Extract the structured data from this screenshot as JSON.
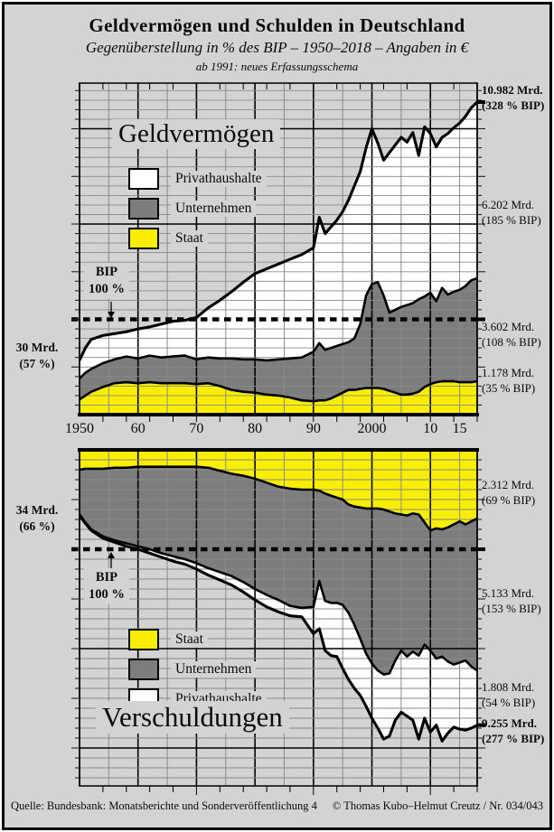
{
  "page": {
    "title": "Geldvermögen und Schulden in Deutschland",
    "subtitle": "Gegenüberstellung in % des BIP – 1950–2018 – Angaben in €",
    "note": "ab 1991: neues Erfassungsschema",
    "footer_left": "Quelle: Bundesbank: Monatsberichte und Sonderveröffentlichung 4",
    "footer_right": "© Thomas Kubo–Helmut Creutz / Nr. 034/043"
  },
  "colors": {
    "staat": "#f9ee00",
    "unternehmen": "#7d7d7d",
    "privathaushalte": "#ffffff",
    "background": "#d3d3d3",
    "line": "#000000",
    "grid_thin": "#8a8a8a",
    "grid_heavy": "#000000"
  },
  "x_axis": {
    "labels": [
      {
        "text": "1950",
        "year": 1950
      },
      {
        "text": "60",
        "year": 1960
      },
      {
        "text": "70",
        "year": 1970
      },
      {
        "text": "80",
        "year": 1980
      },
      {
        "text": "90",
        "year": 1990
      },
      {
        "text": "2000",
        "year": 2000
      },
      {
        "text": "10",
        "year": 2010
      },
      {
        "text": "15",
        "year": 2015
      }
    ]
  },
  "top_chart": {
    "title": "Geldvermögen",
    "legend": [
      {
        "label": "Privathaushalte",
        "color_key": "privathaushalte"
      },
      {
        "label": "Unternehmen",
        "color_key": "unternehmen"
      },
      {
        "label": "Staat",
        "color_key": "staat"
      }
    ],
    "bip_line1": "BIP",
    "bip_line2": "100 %",
    "left_label": {
      "line1": "30 Mrd.",
      "line2": "(57 %)"
    },
    "right_labels": [
      {
        "line1": "10.982 Mrd.",
        "line2": "(328 % BIP)"
      },
      {
        "line1": "6.202 Mrd.",
        "line2": "(185 % BIP)"
      },
      {
        "line1": "3.602 Mrd.",
        "line2": "(108 % BIP)"
      },
      {
        "line1": "1.178 Mrd.",
        "line2": "(35 % BIP)"
      }
    ]
  },
  "bottom_chart": {
    "title": "Verschuldungen",
    "legend": [
      {
        "label": "Staat",
        "color_key": "staat"
      },
      {
        "label": "Unternehmen",
        "color_key": "unternehmen"
      },
      {
        "label": "Privathaushalte",
        "color_key": "privathaushalte"
      }
    ],
    "bip_line1": "BIP",
    "bip_line2": "100 %",
    "left_label": {
      "line1": "34 Mrd.",
      "line2": "(66 %)"
    },
    "right_labels": [
      {
        "line1": "2.312 Mrd.",
        "line2": "(69 % BIP)"
      },
      {
        "line1": "5.133 Mrd.",
        "line2": "(153 % BIP)"
      },
      {
        "line1": "1.808 Mrd.",
        "line2": "(54 % BIP)"
      },
      {
        "line1": "9.255 Mrd.",
        "line2": "(277 % BIP)"
      }
    ]
  },
  "chart_data": [
    {
      "type": "area",
      "stacked": true,
      "title": "Geldvermögen",
      "unit": "% des BIP",
      "orientation": "baseline-bottom",
      "x_range": [
        1950,
        2018
      ],
      "ylim": [
        0,
        345
      ],
      "grid": true,
      "reference_line": {
        "label": "BIP 100 %",
        "value": 100
      },
      "x": [
        1950,
        1951,
        1952,
        1954,
        1956,
        1958,
        1960,
        1962,
        1964,
        1966,
        1968,
        1970,
        1972,
        1974,
        1976,
        1978,
        1980,
        1982,
        1984,
        1986,
        1988,
        1990,
        1991,
        1992,
        1993,
        1994,
        1995,
        1996,
        1997,
        1998,
        1999,
        2000,
        2001,
        2002,
        2003,
        2004,
        2005,
        2006,
        2007,
        2008,
        2009,
        2010,
        2011,
        2012,
        2013,
        2014,
        2015,
        2016,
        2017,
        2018
      ],
      "series_cumulative": [
        {
          "name": "Staat",
          "color_key": "staat",
          "values": [
            16,
            20,
            24,
            29,
            33,
            34,
            33,
            34,
            33,
            33,
            33,
            32,
            33,
            30,
            26,
            24,
            23,
            21,
            20,
            18,
            15,
            14,
            15,
            15,
            17,
            20,
            23,
            26,
            26,
            27,
            28,
            28,
            28,
            27,
            25,
            23,
            21,
            21,
            22,
            24,
            29,
            32,
            34,
            35,
            35,
            35,
            34,
            34,
            34,
            35
          ]
        },
        {
          "name": "Staat + Unternehmen",
          "color_key": "unternehmen",
          "values": [
            38,
            44,
            48,
            54,
            58,
            61,
            59,
            62,
            60,
            61,
            62,
            58,
            60,
            59,
            59,
            58,
            58,
            57,
            58,
            59,
            60,
            66,
            75,
            68,
            70,
            72,
            74,
            76,
            80,
            95,
            125,
            137,
            139,
            125,
            107,
            110,
            113,
            115,
            117,
            121,
            124,
            128,
            119,
            133,
            126,
            129,
            131,
            135,
            141,
            143
          ]
        },
        {
          "name": "Gesamt (Staat + Unternehmen + Privathaushalte)",
          "color_key": "privathaushalte",
          "values": [
            57,
            70,
            79,
            83,
            85,
            87,
            90,
            92,
            95,
            98,
            99,
            102,
            112,
            120,
            129,
            139,
            148,
            153,
            158,
            163,
            168,
            175,
            207,
            190,
            197,
            204,
            213,
            225,
            240,
            255,
            280,
            300,
            285,
            267,
            275,
            283,
            291,
            286,
            296,
            272,
            302,
            295,
            281,
            291,
            295,
            301,
            306,
            313,
            322,
            328
          ]
        }
      ],
      "annotations": {
        "start_1950": "30 Mrd. (57 %)",
        "end_2018_total": "10.982 Mrd. (328 % BIP)",
        "end_2018_privathaushalte": "6.202 Mrd. (185 % BIP)",
        "end_2018_unternehmen": "3.602 Mrd. (108 % BIP)",
        "end_2018_staat": "1.178 Mrd. (35 % BIP)"
      }
    },
    {
      "type": "area",
      "stacked": true,
      "title": "Verschuldungen",
      "unit": "% des BIP",
      "orientation": "baseline-top",
      "x_range": [
        1950,
        2018
      ],
      "ylim": [
        0,
        337
      ],
      "grid": true,
      "reference_line": {
        "label": "BIP 100 %",
        "value": 100
      },
      "x": [
        1950,
        1951,
        1952,
        1954,
        1956,
        1958,
        1960,
        1962,
        1964,
        1966,
        1968,
        1970,
        1972,
        1974,
        1976,
        1978,
        1980,
        1982,
        1984,
        1986,
        1988,
        1990,
        1991,
        1992,
        1993,
        1994,
        1995,
        1996,
        1997,
        1998,
        1999,
        2000,
        2001,
        2002,
        2003,
        2004,
        2005,
        2006,
        2007,
        2008,
        2009,
        2010,
        2011,
        2012,
        2013,
        2014,
        2015,
        2016,
        2017,
        2018
      ],
      "series_cumulative": [
        {
          "name": "Staat",
          "color_key": "staat",
          "values": [
            20,
            19,
            19,
            19,
            18,
            18,
            17,
            17,
            17,
            17,
            17,
            17,
            18,
            21,
            24,
            26,
            29,
            33,
            37,
            39,
            40,
            40,
            41,
            44,
            46,
            48,
            50,
            55,
            57,
            58,
            59,
            59,
            59,
            60,
            62,
            64,
            65,
            66,
            64,
            65,
            73,
            81,
            79,
            80,
            78,
            75,
            72,
            75,
            72,
            69
          ]
        },
        {
          "name": "Staat + Unternehmen",
          "color_key": "unternehmen",
          "values": [
            65,
            73,
            80,
            87,
            91,
            94,
            97,
            100,
            104,
            107,
            110,
            114,
            119,
            123,
            127,
            133,
            140,
            146,
            151,
            157,
            159,
            158,
            132,
            152,
            154,
            154,
            156,
            164,
            176,
            190,
            205,
            215,
            222,
            226,
            225,
            212,
            202,
            208,
            203,
            207,
            196,
            202,
            210,
            208,
            213,
            216,
            214,
            212,
            218,
            222
          ]
        },
        {
          "name": "Gesamt (Staat + Unternehmen + Privathaushalte)",
          "color_key": "privathaushalte",
          "values": [
            66,
            74,
            81,
            89,
            93,
            97,
            100,
            104,
            108,
            112,
            115,
            120,
            126,
            131,
            136,
            143,
            151,
            158,
            163,
            167,
            168,
            185,
            180,
            202,
            207,
            208,
            220,
            231,
            240,
            247,
            258,
            270,
            280,
            291,
            288,
            272,
            264,
            268,
            272,
            291,
            270,
            284,
            277,
            293,
            285,
            279,
            281,
            282,
            280,
            277
          ]
        }
      ],
      "annotations": {
        "start_1950": "34 Mrd. (66 %)",
        "end_2018_staat": "2.312 Mrd. (69 % BIP)",
        "end_2018_unternehmen": "5.133 Mrd. (153 % BIP)",
        "end_2018_privathaushalte": "1.808 Mrd. (54 % BIP)",
        "end_2018_total": "9.255 Mrd. (277 % BIP)"
      }
    }
  ]
}
